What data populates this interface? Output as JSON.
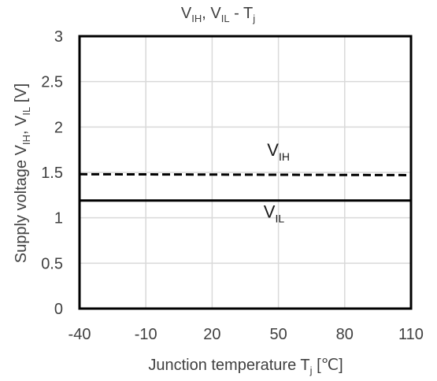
{
  "chart_data": {
    "type": "line",
    "title": "V_IH, V_IL - T_j",
    "title_parts": {
      "a": "V",
      "a_sub": "IH",
      "b": ", V",
      "b_sub": "IL",
      "c": " - T",
      "c_sub": "j"
    },
    "xlabel": "Junction temperature  T_j  [℃]",
    "xlabel_parts": {
      "main": "Junction temperature  T",
      "sub": "j",
      "unit": "  [℃]"
    },
    "ylabel": "Supply voltage  V_IH, V_IL  [V]",
    "ylabel_parts": {
      "main": "Supply voltage  V",
      "sub1": "IH",
      "mid": ", V",
      "sub2": "IL",
      "unit": "  [V]"
    },
    "xlim": [
      -40,
      110
    ],
    "ylim": [
      0,
      3
    ],
    "xticks": [
      -40,
      -10,
      20,
      50,
      80,
      110
    ],
    "xtick_labels": [
      "-40",
      "-10",
      "20",
      "50",
      "80",
      "110"
    ],
    "yticks": [
      0,
      0.5,
      1,
      1.5,
      2,
      2.5,
      3
    ],
    "ytick_labels": [
      "0",
      "0.5",
      "1",
      "1.5",
      "2",
      "2.5",
      "3"
    ],
    "grid": true,
    "legend": "none",
    "series": [
      {
        "name": "V_IH",
        "label_main": "V",
        "label_sub": "IH",
        "style": "dashed",
        "color": "#000000",
        "x": [
          -40,
          110
        ],
        "y": [
          1.48,
          1.47
        ],
        "label_at": [
          50,
          1.68
        ]
      },
      {
        "name": "V_IL",
        "label_main": "V",
        "label_sub": "IL",
        "style": "solid",
        "color": "#000000",
        "x": [
          -40,
          110
        ],
        "y": [
          1.19,
          1.19
        ],
        "label_at": [
          48,
          1.0
        ]
      }
    ]
  }
}
